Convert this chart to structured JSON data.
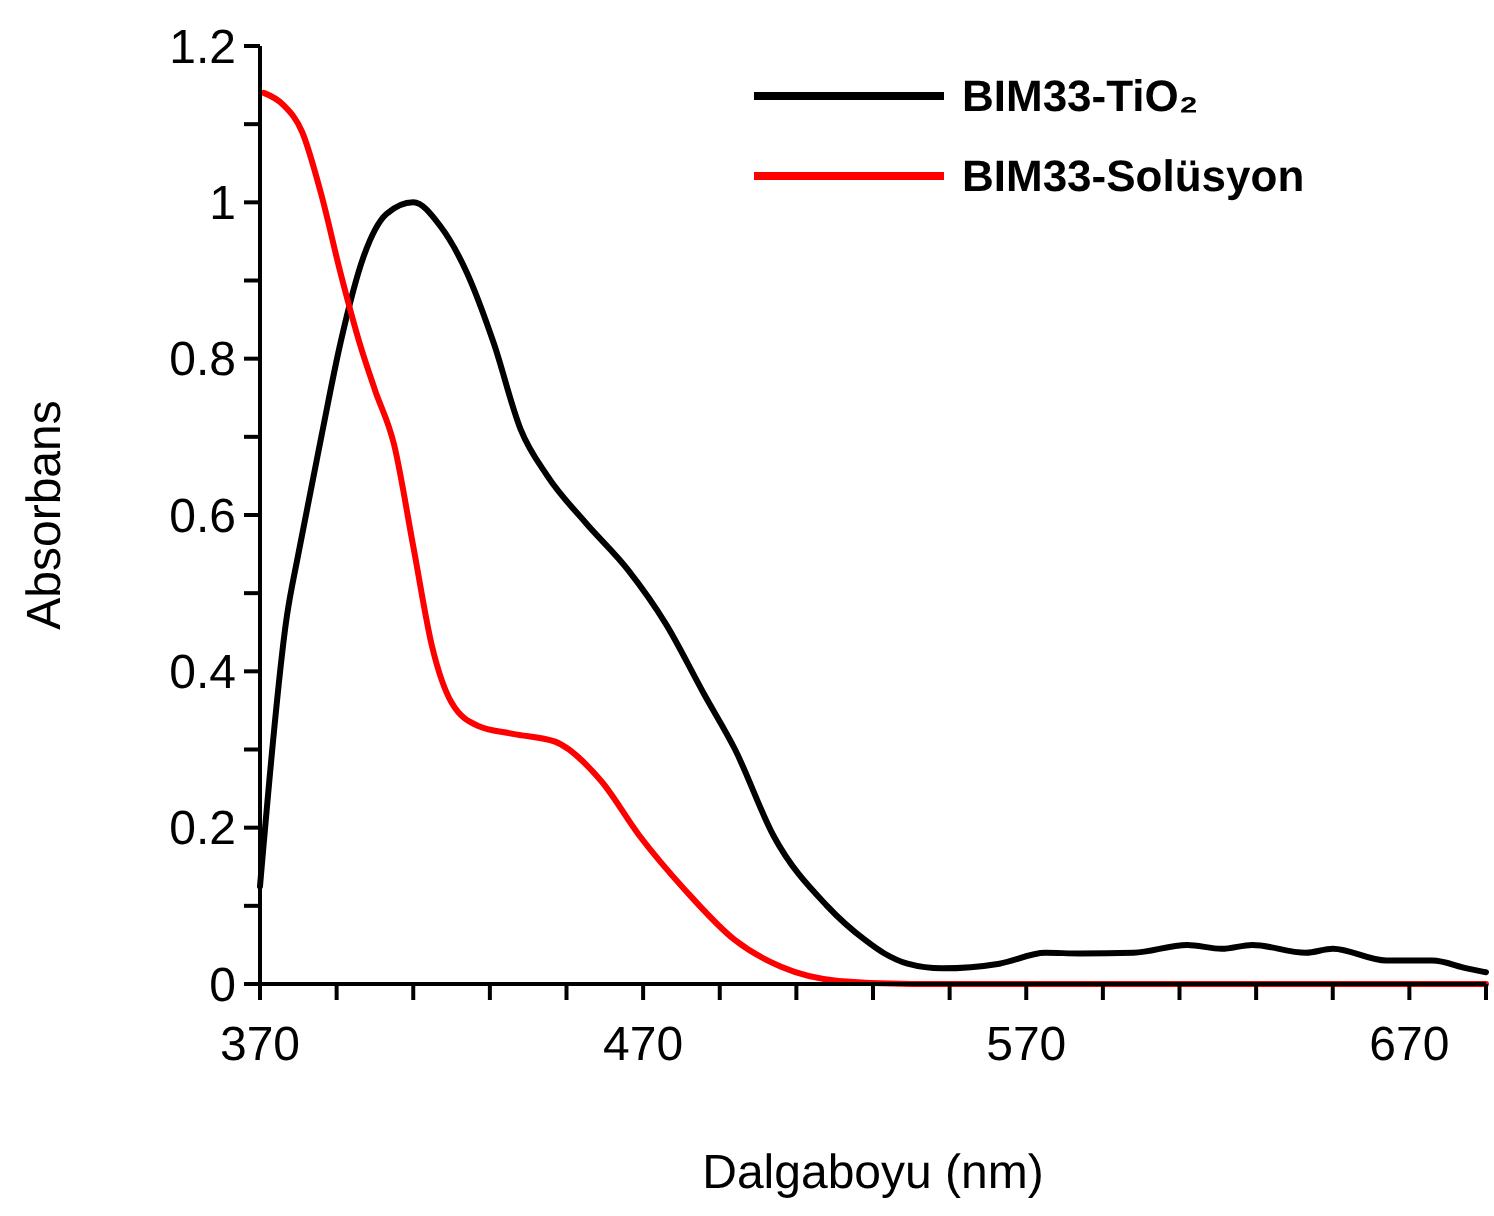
{
  "chart_data": {
    "type": "line",
    "xlabel": "Dalgaboyu (nm)",
    "ylabel": "Absorbans",
    "legend": "top right",
    "grid": false,
    "marker": "none",
    "line_style": "solid",
    "xlim": [
      370,
      690
    ],
    "ylim": [
      0,
      1.2
    ],
    "xticks": [
      370,
      {
        "value": 390,
        "label": null
      },
      {
        "value": 410,
        "label": null
      },
      {
        "value": 430,
        "label": null
      },
      {
        "value": 450,
        "label": null
      },
      470,
      {
        "value": 490,
        "label": null
      },
      {
        "value": 510,
        "label": null
      },
      {
        "value": 530,
        "label": null
      },
      {
        "value": 550,
        "label": null
      },
      570,
      {
        "value": 590,
        "label": null
      },
      {
        "value": 610,
        "label": null
      },
      {
        "value": 630,
        "label": null
      },
      {
        "value": 650,
        "label": null
      },
      670,
      {
        "value": 690,
        "label": null
      }
    ],
    "yticks": [
      0,
      {
        "value": 0.1,
        "label": null
      },
      0.2,
      {
        "value": 0.3,
        "label": null
      },
      0.4,
      {
        "value": 0.5,
        "label": null
      },
      0.6,
      {
        "value": 0.7,
        "label": null
      },
      0.8,
      {
        "value": 0.9,
        "label": null
      },
      1,
      {
        "value": 1.1,
        "label": null
      },
      1.2
    ],
    "series": [
      {
        "name": "BIM33-TiO₂",
        "color": "#000000",
        "x": [
          370,
          377,
          380,
          386,
          391,
          397,
          403,
          410,
          417,
          424,
          431,
          438,
          445,
          455,
          466,
          476,
          486,
          494,
          504,
          518,
          528,
          533,
          539,
          548,
          563,
          575,
          584,
          598,
          612,
          621,
          629,
          643,
          650,
          664,
          676,
          685,
          690
        ],
        "values": [
          0.125,
          0.47,
          0.55,
          0.7,
          0.82,
          0.93,
          0.985,
          1.0,
          0.97,
          0.91,
          0.82,
          0.71,
          0.65,
          0.59,
          0.53,
          0.46,
          0.37,
          0.3,
          0.19,
          0.1,
          0.056,
          0.039,
          0.026,
          0.02,
          0.026,
          0.04,
          0.039,
          0.04,
          0.05,
          0.045,
          0.05,
          0.04,
          0.045,
          0.03,
          0.03,
          0.02,
          0.015
        ]
      },
      {
        "name": "BIM33-Solüsyon",
        "color": "#ff0000",
        "x": [
          371,
          376,
          381,
          386,
          391,
          396,
          400,
          405,
          410,
          415,
          420,
          427,
          436,
          447,
          459,
          469,
          481,
          494,
          506,
          521,
          540,
          690
        ],
        "values": [
          1.14,
          1.125,
          1.09,
          1.01,
          0.91,
          0.82,
          0.76,
          0.69,
          0.56,
          0.43,
          0.36,
          0.33,
          0.32,
          0.31,
          0.26,
          0.19,
          0.12,
          0.056,
          0.022,
          0.004,
          0,
          0
        ]
      }
    ]
  }
}
